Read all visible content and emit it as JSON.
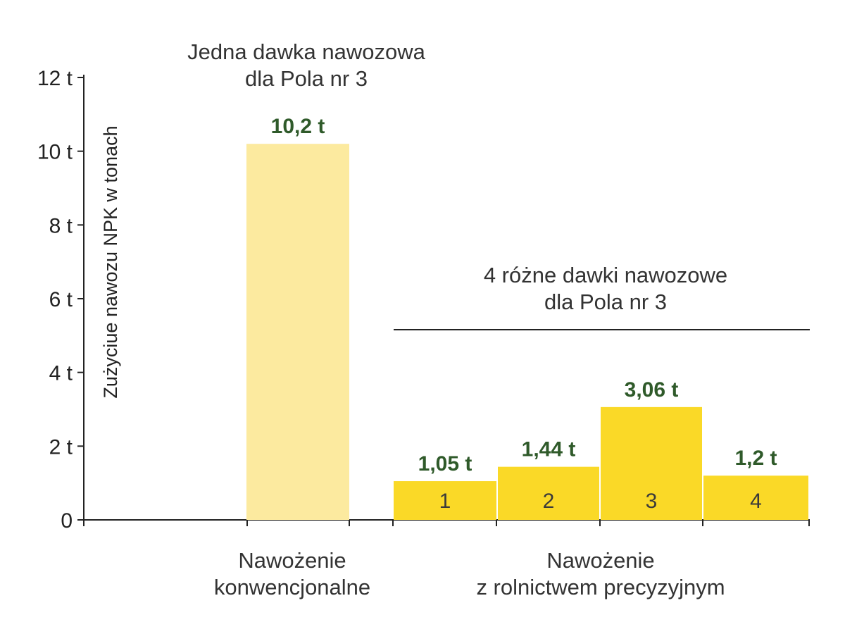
{
  "chart_data": {
    "type": "bar",
    "ylabel": "Zużyciue nawozu NPK w tonach",
    "ylim": [
      0,
      12
    ],
    "yticks": [
      {
        "value": 0,
        "label": "0"
      },
      {
        "value": 2,
        "label": "2 t"
      },
      {
        "value": 4,
        "label": "4 t"
      },
      {
        "value": 6,
        "label": "6 t"
      },
      {
        "value": 8,
        "label": "8 t"
      },
      {
        "value": 10,
        "label": "10 t"
      },
      {
        "value": 12,
        "label": "12 t"
      }
    ],
    "grid": false,
    "groups": [
      {
        "category_lines": [
          "Nawożenie",
          "konwencjonalne"
        ],
        "annotation_lines": [
          "Jedna dawka nawozowa",
          "dla Pola nr 3"
        ],
        "bars": [
          {
            "value": 10.2,
            "value_label": "10,2 t",
            "bar_label": "",
            "color": "#fcea9f"
          }
        ]
      },
      {
        "category_lines": [
          "Nawożenie",
          "z rolnictwem precyzyjnym"
        ],
        "annotation_lines": [
          "4 różne dawki nawozowe",
          "dla Pola nr 3"
        ],
        "bars": [
          {
            "value": 1.05,
            "value_label": "1,05 t",
            "bar_label": "1",
            "color": "#fad927"
          },
          {
            "value": 1.44,
            "value_label": "1,44 t",
            "bar_label": "2",
            "color": "#fad927"
          },
          {
            "value": 3.06,
            "value_label": "3,06 t",
            "bar_label": "3",
            "color": "#fad927"
          },
          {
            "value": 1.2,
            "value_label": "1,2 t",
            "bar_label": "4",
            "color": "#fad927"
          }
        ]
      }
    ]
  },
  "colors": {
    "axis": "#222222",
    "value_label": "#2f5a2a",
    "conventional_bar": "#fcea9f",
    "precision_bar": "#fad927"
  }
}
